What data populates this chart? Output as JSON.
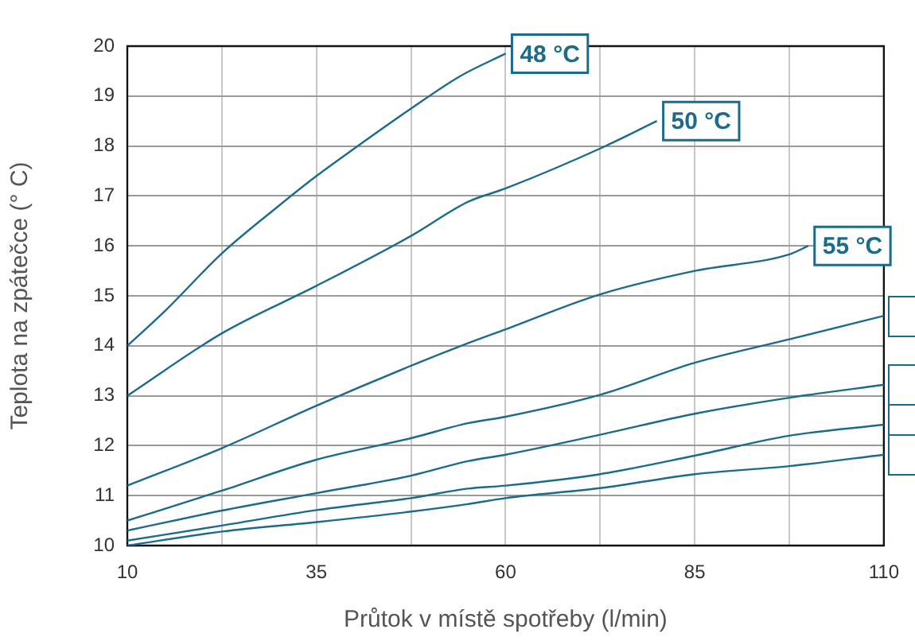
{
  "chart_data": {
    "type": "line",
    "xlabel": "Průtok v místě spotřeby (l/min)",
    "ylabel": "Teplota na zpátečce (° C)",
    "xlim": [
      10,
      110
    ],
    "xticks": [
      10,
      {
        "value": 22.5,
        "label": null
      },
      35,
      {
        "value": 47.5,
        "label": null
      },
      60,
      {
        "value": 72.5,
        "label": null
      },
      85,
      {
        "value": 97.5,
        "label": null
      },
      110
    ],
    "ylim": [
      10,
      20
    ],
    "yticks": [
      10,
      11,
      12,
      13,
      14,
      15,
      16,
      17,
      18,
      19,
      20
    ],
    "grid": true,
    "marker": "none",
    "line_style": "solid",
    "series": [
      {
        "name": "48 °C",
        "color": "#1b6b8c",
        "x": [
          10,
          15,
          22.5,
          30,
          35,
          40,
          47.5,
          54,
          60
        ],
        "values": [
          14,
          14.7,
          15.85,
          16.8,
          17.4,
          17.95,
          18.75,
          19.4,
          19.85
        ]
      },
      {
        "name": "50 °C",
        "color": "#1b6b8c",
        "x": [
          10,
          22.5,
          35,
          47.5,
          55,
          60,
          72.5,
          80
        ],
        "values": [
          13,
          14.25,
          15.2,
          16.2,
          16.88,
          17.15,
          17.95,
          18.5
        ]
      },
      {
        "name": "55 °C",
        "color": "#1b6b8c",
        "x": [
          10,
          22.5,
          35,
          47.5,
          55,
          60,
          72.5,
          85,
          97.5,
          100
        ],
        "values": [
          11.2,
          11.95,
          12.8,
          13.6,
          14.05,
          14.33,
          15.03,
          15.5,
          15.83,
          16
        ]
      },
      {
        "color": "#1b6b8c",
        "x": [
          10,
          22.5,
          35,
          47.5,
          55,
          60,
          72.5,
          85,
          97.5,
          110
        ],
        "values": [
          10.5,
          11.1,
          11.72,
          12.15,
          12.45,
          12.58,
          13.02,
          13.66,
          14.13,
          14.6
        ]
      },
      {
        "color": "#1b6b8c",
        "x": [
          10,
          22.5,
          35,
          47.5,
          55,
          60,
          72.5,
          85,
          97.5,
          110
        ],
        "values": [
          10.3,
          10.7,
          11.05,
          11.4,
          11.69,
          11.82,
          12.22,
          12.64,
          12.96,
          13.22
        ]
      },
      {
        "color": "#1b6b8c",
        "x": [
          10,
          22.5,
          35,
          47.5,
          55,
          60,
          72.5,
          85,
          97.5,
          110
        ],
        "values": [
          10.1,
          10.4,
          10.71,
          10.95,
          11.14,
          11.2,
          11.43,
          11.8,
          12.2,
          12.42
        ]
      },
      {
        "color": "#1b6b8c",
        "x": [
          10,
          22.5,
          35,
          47.5,
          55,
          60,
          72.5,
          85,
          97.5,
          110
        ],
        "values": [
          10,
          10.28,
          10.47,
          10.68,
          10.83,
          10.95,
          11.15,
          11.43,
          11.59,
          11.82
        ]
      }
    ]
  }
}
